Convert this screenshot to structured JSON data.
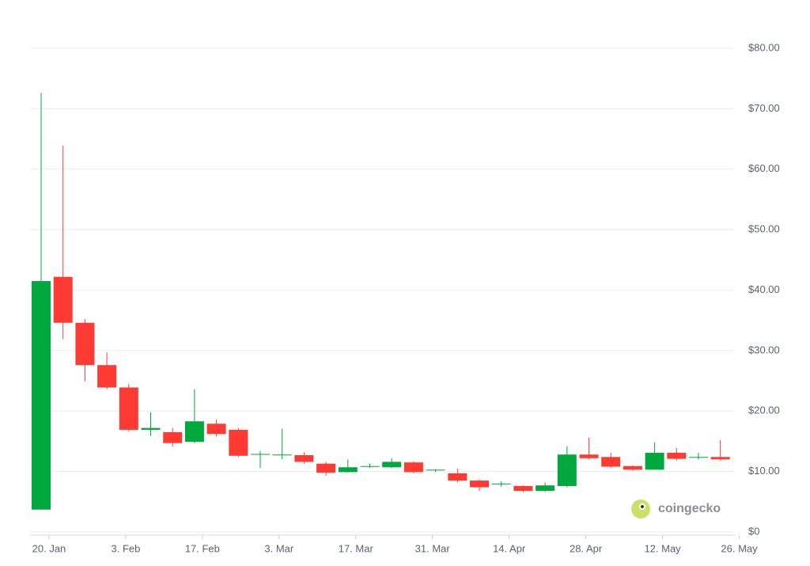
{
  "chart_data": {
    "type": "candlestick",
    "categories": [
      null,
      null,
      null,
      null,
      null,
      null,
      null,
      null,
      null,
      null,
      null,
      null,
      null,
      null,
      null,
      null,
      null,
      null,
      null,
      null,
      null,
      null,
      null,
      null,
      null,
      null,
      null,
      null,
      null,
      null,
      null,
      null
    ],
    "xtick_labels": [
      "20. Jan",
      "3. Feb",
      "17. Feb",
      "3. Mar",
      "17. Mar",
      "31. Mar",
      "14. Apr",
      "28. Apr",
      "12. May",
      "26. May"
    ],
    "open": [
      3.7,
      42.2,
      34.6,
      27.6,
      23.9,
      16.9,
      16.5,
      14.9,
      17.9,
      16.9,
      12.8,
      12.7,
      12.7,
      11.3,
      9.9,
      10.9,
      10.7,
      11.5,
      10.2,
      9.7,
      8.5,
      7.9,
      7.6,
      6.8,
      7.6,
      12.8,
      12.4,
      10.9,
      10.3,
      13.1,
      12.3,
      12.4
    ],
    "high": [
      72.6,
      63.9,
      35.2,
      29.7,
      24.5,
      19.8,
      17.2,
      23.6,
      18.6,
      17.2,
      13.4,
      17.1,
      13.2,
      11.6,
      12.0,
      11.3,
      12.2,
      11.7,
      10.4,
      10.5,
      8.7,
      8.4,
      7.7,
      8.2,
      14.2,
      15.6,
      13.1,
      11.0,
      14.8,
      13.9,
      13.1,
      15.2
    ],
    "low": [
      3.7,
      31.9,
      24.9,
      23.6,
      16.6,
      15.9,
      14.1,
      14.7,
      15.8,
      12.4,
      10.6,
      12.0,
      11.3,
      9.3,
      9.8,
      10.6,
      10.6,
      9.7,
      9.9,
      8.2,
      6.8,
      7.5,
      6.6,
      6.6,
      7.4,
      12.0,
      10.6,
      10.1,
      10.3,
      11.8,
      12.0,
      11.9
    ],
    "close": [
      41.5,
      34.6,
      27.6,
      23.9,
      16.9,
      17.2,
      14.7,
      18.3,
      16.2,
      12.6,
      12.9,
      12.8,
      11.6,
      9.8,
      10.7,
      10.9,
      11.6,
      9.9,
      10.3,
      8.5,
      7.4,
      8.0,
      6.8,
      7.7,
      12.8,
      12.2,
      10.8,
      10.3,
      13.1,
      12.1,
      12.4,
      12.0
    ],
    "up_color": "#00a83e",
    "down_color": "#ff3a33",
    "ylim": [
      0,
      80
    ],
    "yticks": [
      {
        "value": 0,
        "label": "$0"
      },
      {
        "value": 10,
        "label": "$10.00"
      },
      {
        "value": 20,
        "label": "$20.00"
      },
      {
        "value": 30,
        "label": "$30.00"
      },
      {
        "value": 40,
        "label": "$40.00"
      },
      {
        "value": 50,
        "label": "$50.00"
      },
      {
        "value": 60,
        "label": "$60.00"
      },
      {
        "value": 70,
        "label": "$70.00"
      },
      {
        "value": 80,
        "label": "$80.00"
      }
    ],
    "grid": true,
    "watermark": "coingecko"
  }
}
